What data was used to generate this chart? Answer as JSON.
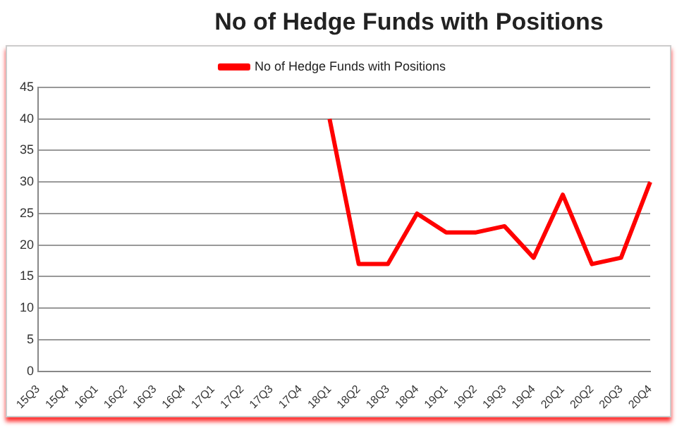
{
  "chart_data": {
    "type": "line",
    "title": "No of Hedge Funds with Positions",
    "categories": [
      "15Q3",
      "15Q4",
      "16Q1",
      "16Q2",
      "16Q3",
      "16Q4",
      "17Q1",
      "17Q2",
      "17Q3",
      "17Q4",
      "18Q1",
      "18Q2",
      "18Q3",
      "18Q4",
      "19Q1",
      "19Q2",
      "19Q3",
      "19Q4",
      "20Q1",
      "20Q2",
      "20Q3",
      "20Q4"
    ],
    "series": [
      {
        "name": "No of Hedge Funds with Positions",
        "color": "#ff0000",
        "values": [
          null,
          null,
          null,
          null,
          null,
          null,
          null,
          null,
          null,
          null,
          40,
          17,
          17,
          25,
          22,
          22,
          23,
          18,
          28,
          17,
          18,
          30
        ]
      }
    ],
    "ylim": [
      0,
      45
    ],
    "yticks": [
      0,
      5,
      10,
      15,
      20,
      25,
      30,
      35,
      40,
      45
    ],
    "grid": "y",
    "legend": "top",
    "marker": "none",
    "line_style": "solid"
  }
}
